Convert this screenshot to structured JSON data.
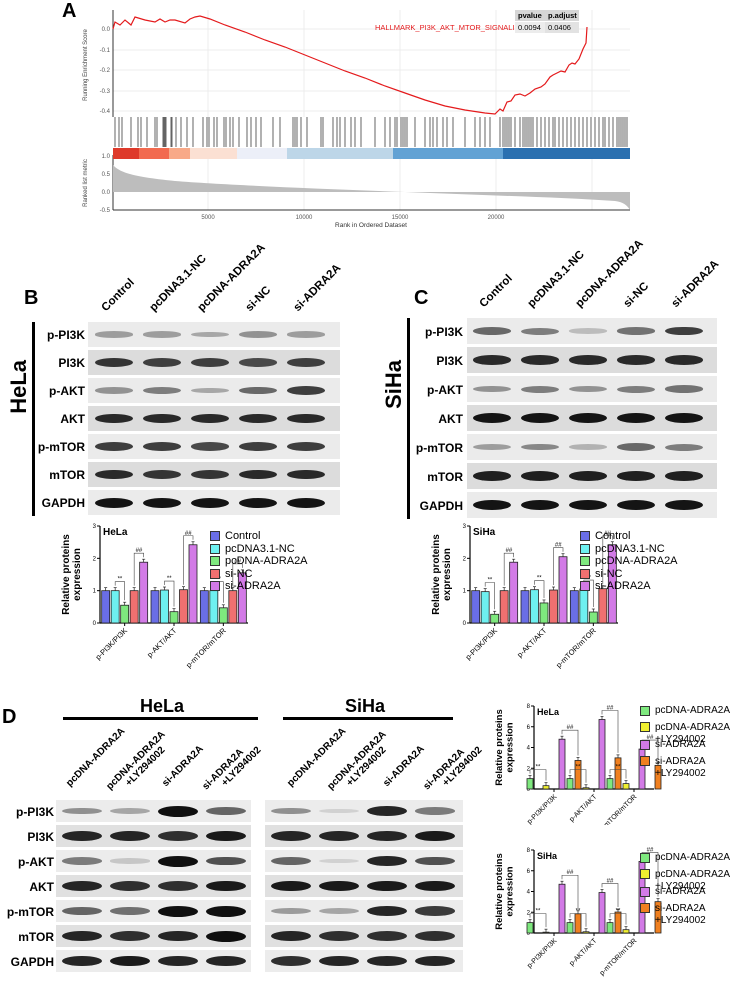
{
  "panels": {
    "A": {
      "letter": "A"
    },
    "B": {
      "letter": "B"
    },
    "C": {
      "letter": "C"
    },
    "D": {
      "letter": "D"
    }
  },
  "gsea": {
    "gene_set": "HALLMARK_PI3K_AKT_MTOR_SIGNALING",
    "table": {
      "headers": [
        "pvalue",
        "p.adjust"
      ],
      "values": [
        "0.0094",
        "0.0406"
      ]
    },
    "ylabel_top": "Running Enrichment Score",
    "ylabel_bottom": "Ranked list metric",
    "xlabel": "Rank in Ordered Dataset",
    "yticks_top": [
      "0.0",
      "-0.1",
      "-0.2",
      "-0.3",
      "-0.4"
    ],
    "yticks_bottom": [
      "1.0",
      "0.5",
      "0.0",
      "-0.5"
    ],
    "xticks": [
      "5000",
      "10000",
      "15000",
      "20000"
    ],
    "line_color": "#e41a1c"
  },
  "blotB": {
    "cell_line": "HeLa",
    "columns": [
      "Control",
      "pcDNA3.1-NC",
      "pcDNA-ADRA2A",
      "si-NC",
      "si-ADRA2A"
    ],
    "rows": [
      "p-PI3K",
      "PI3K",
      "p-AKT",
      "AKT",
      "p-mTOR",
      "mTOR",
      "GAPDH"
    ]
  },
  "blotC": {
    "cell_line": "SiHa",
    "columns": [
      "Control",
      "pcDNA3.1-NC",
      "pcDNA-ADRA2A",
      "si-NC",
      "si-ADRA2A"
    ],
    "rows": [
      "p-PI3K",
      "PI3K",
      "p-AKT",
      "AKT",
      "p-mTOR",
      "mTOR",
      "GAPDH"
    ]
  },
  "blotD": {
    "groups": [
      "HeLa",
      "SiHa"
    ],
    "columns": [
      "pcDNA-ADRA2A",
      "pcDNA-ADRA2A",
      "+LY294002",
      "si-ADRA2A",
      "si-ADRA2A",
      "+LY294002"
    ],
    "column_labels": [
      {
        "l1": "pcDNA-ADRA2A",
        "l2": ""
      },
      {
        "l1": "pcDNA-ADRA2A",
        "l2": "+LY294002"
      },
      {
        "l1": "si-ADRA2A",
        "l2": ""
      },
      {
        "l1": "si-ADRA2A",
        "l2": "+LY294002"
      }
    ],
    "rows": [
      "p-PI3K",
      "PI3K",
      "p-AKT",
      "AKT",
      "p-mTOR",
      "mTOR",
      "GAPDH"
    ]
  },
  "legend_BC": [
    {
      "label": "Control",
      "color": "#6a6ee6"
    },
    {
      "label": "pcDNA3.1-NC",
      "color": "#6ef0f0"
    },
    {
      "label": "pcDNA-ADRA2A",
      "color": "#7ee87e"
    },
    {
      "label": "si-NC",
      "color": "#f07070"
    },
    {
      "label": "si-ADRA2A",
      "color": "#d27ae6"
    }
  ],
  "legend_D": [
    {
      "label": "pcDNA-ADRA2A",
      "label2": "",
      "color": "#7ee87e"
    },
    {
      "label": "pcDNA-ADRA2A",
      "label2": "+LY294002",
      "color": "#f0f030"
    },
    {
      "label": "si-ADRA2A",
      "label2": "",
      "color": "#d27ae6"
    },
    {
      "label": "si-ADRA2A",
      "label2": "+LY294002",
      "color": "#f08020"
    }
  ],
  "chart_data": [
    {
      "type": "bar",
      "title": "HeLa",
      "ylabel": "Relative proteins expression",
      "xlabel": "",
      "ylim": [
        0,
        3
      ],
      "yticks": [
        "0",
        "1",
        "2",
        "3"
      ],
      "categories": [
        "p-PI3K/PI3K",
        "p-AKT/AKT",
        "p-mTOR/mTOR"
      ],
      "series": [
        {
          "name": "Control",
          "values": [
            1.0,
            1.0,
            1.0
          ]
        },
        {
          "name": "pcDNA3.1-NC",
          "values": [
            1.0,
            1.02,
            1.0
          ]
        },
        {
          "name": "pcDNA-ADRA2A",
          "values": [
            0.55,
            0.35,
            0.47
          ]
        },
        {
          "name": "si-NC",
          "values": [
            1.0,
            1.03,
            1.0
          ]
        },
        {
          "name": "si-ADRA2A",
          "values": [
            1.88,
            2.42,
            1.55
          ]
        }
      ],
      "annotations": [
        "**",
        "##"
      ],
      "legend_position": "right"
    },
    {
      "type": "bar",
      "title": "SiHa",
      "ylabel": "Relative proteins expression",
      "xlabel": "",
      "ylim": [
        0,
        3
      ],
      "yticks": [
        "0",
        "1",
        "2",
        "3"
      ],
      "categories": [
        "p-PI3K/PI3K",
        "p-AKT/AKT",
        "p-mTOR/mTOR"
      ],
      "series": [
        {
          "name": "Control",
          "values": [
            1.0,
            1.0,
            1.0
          ]
        },
        {
          "name": "pcDNA3.1-NC",
          "values": [
            0.97,
            1.03,
            1.05
          ]
        },
        {
          "name": "pcDNA-ADRA2A",
          "values": [
            0.27,
            0.62,
            0.34
          ]
        },
        {
          "name": "si-NC",
          "values": [
            1.0,
            1.02,
            1.06
          ]
        },
        {
          "name": "si-ADRA2A",
          "values": [
            1.88,
            2.05,
            2.42
          ]
        }
      ],
      "annotations": [
        "**",
        "##"
      ],
      "legend_position": "right"
    },
    {
      "type": "bar",
      "title": "HeLa",
      "ylabel": "Relative proteins expression",
      "xlabel": "",
      "ylim": [
        0,
        8
      ],
      "yticks": [
        "0",
        "2",
        "4",
        "6",
        "8"
      ],
      "categories": [
        "p-PI3K/PI3K",
        "p-AKT/AKT",
        "p-mTOR/mTOR"
      ],
      "series": [
        {
          "name": "pcDNA-ADRA2A",
          "values": [
            1.0,
            1.0,
            1.0
          ]
        },
        {
          "name": "pcDNA-ADRA2A +LY294002",
          "values": [
            0.32,
            0.12,
            0.52
          ]
        },
        {
          "name": "si-ADRA2A",
          "values": [
            4.8,
            6.7,
            3.85
          ]
        },
        {
          "name": "si-ADRA2A +LY294002",
          "values": [
            2.75,
            3.0,
            2.28
          ]
        }
      ],
      "annotations": [
        "**",
        "##"
      ],
      "legend_position": "right"
    },
    {
      "type": "bar",
      "title": "SiHa",
      "ylabel": "Relative proteins expression",
      "xlabel": "",
      "ylim": [
        0,
        8
      ],
      "yticks": [
        "0",
        "2",
        "4",
        "6",
        "8"
      ],
      "categories": [
        "p-PI3K/PI3K",
        "p-AKT/AKT",
        "p-mTOR/mTOR"
      ],
      "series": [
        {
          "name": "pcDNA-ADRA2A",
          "values": [
            1.0,
            1.0,
            1.0
          ]
        },
        {
          "name": "pcDNA-ADRA2A +LY294002",
          "values": [
            0.08,
            0.12,
            0.32
          ]
        },
        {
          "name": "si-ADRA2A",
          "values": [
            4.7,
            3.9,
            6.9
          ]
        },
        {
          "name": "si-ADRA2A +LY294002",
          "values": [
            1.85,
            2.02,
            3.02
          ]
        }
      ],
      "annotations": [
        "**",
        "##"
      ],
      "legend_position": "right"
    }
  ]
}
